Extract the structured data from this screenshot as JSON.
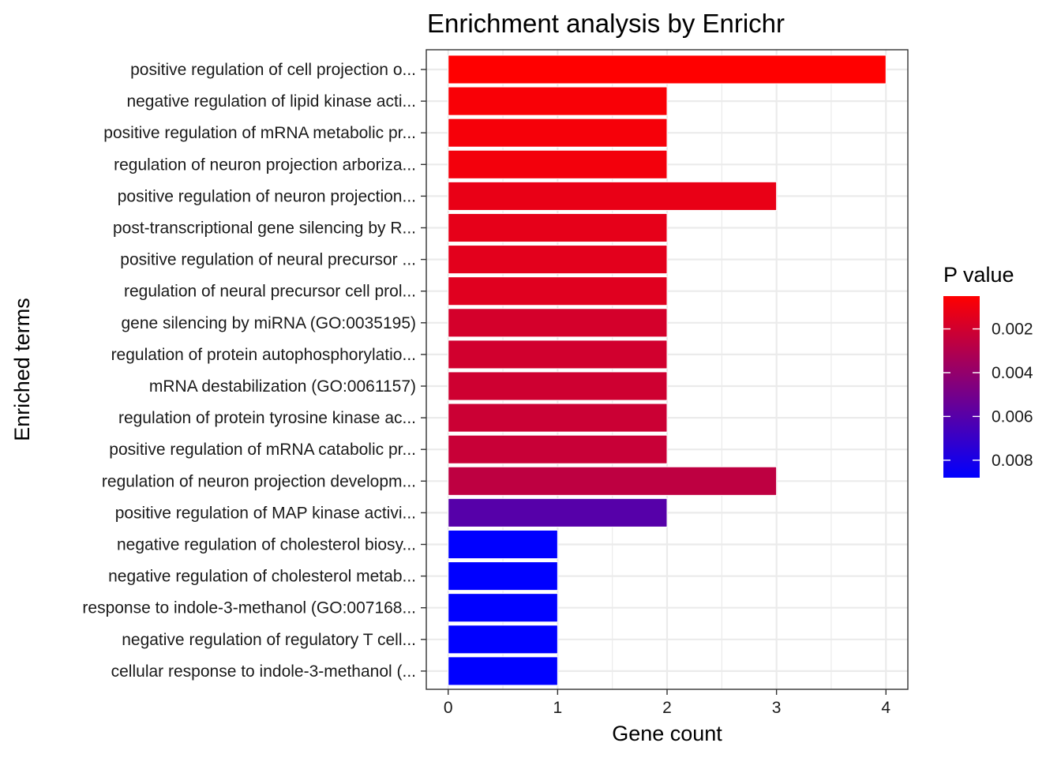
{
  "chart_data": {
    "type": "bar",
    "orientation": "horizontal",
    "title": "Enrichment analysis by Enrichr",
    "xlabel": "Gene count",
    "ylabel": "Enriched terms",
    "xlim": [
      -0.2,
      4.2
    ],
    "xticks": [
      0,
      1,
      2,
      3,
      4
    ],
    "grid": true,
    "legend": {
      "title": "P value",
      "position": "right",
      "ticks": [
        0.002,
        0.004,
        0.006,
        0.008
      ],
      "range": [
        0.0005,
        0.0088
      ],
      "low_color": "#ff0000",
      "high_color": "#0000ff"
    },
    "categories": [
      "positive regulation of cell projection o...",
      "negative regulation of lipid kinase acti...",
      "positive regulation of mRNA metabolic pr...",
      "regulation of neuron projection arboriza...",
      "positive regulation of neuron projection...",
      "post-transcriptional gene silencing by R...",
      "positive regulation of neural precursor ...",
      "regulation of neural precursor cell prol...",
      "gene silencing by miRNA (GO:0035195)",
      "regulation of protein autophosphorylatio...",
      "mRNA destabilization (GO:0061157)",
      "regulation of protein tyrosine kinase ac...",
      "positive regulation of mRNA catabolic pr...",
      "regulation of neuron projection developm...",
      "positive regulation of MAP kinase activi...",
      "negative regulation of cholesterol biosy...",
      "negative regulation of cholesterol metab...",
      "response to indole-3-methanol (GO:007168...",
      "negative regulation of regulatory T cell...",
      "cellular response to indole-3-methanol (..."
    ],
    "values": [
      4,
      2,
      2,
      2,
      3,
      2,
      2,
      2,
      2,
      2,
      2,
      2,
      2,
      3,
      2,
      1,
      1,
      1,
      1,
      1
    ],
    "pvalues": [
      0.0005,
      0.0007,
      0.0008,
      0.0009,
      0.0012,
      0.0013,
      0.0014,
      0.0015,
      0.0019,
      0.002,
      0.0021,
      0.0022,
      0.0023,
      0.0026,
      0.006,
      0.0088,
      0.0088,
      0.0088,
      0.0088,
      0.0088
    ]
  }
}
